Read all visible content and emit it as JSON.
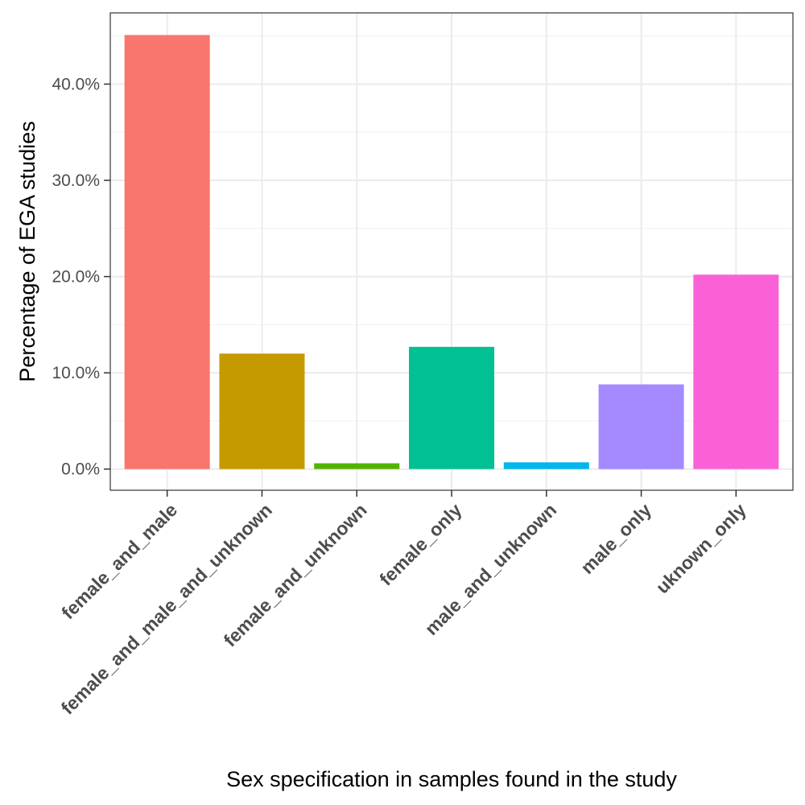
{
  "chart_data": {
    "type": "bar",
    "title": "",
    "xlabel": "Sex specification in samples found in the study",
    "ylabel": "Percentage of EGA studies",
    "categories": [
      "female_and_male",
      "female_and_male_and_unknown",
      "female_and_unknown",
      "female_only",
      "male_and_unknown",
      "male_only",
      "uknown_only"
    ],
    "values": [
      45.1,
      12.0,
      0.6,
      12.7,
      0.7,
      8.8,
      20.2
    ],
    "colors": [
      "#F8766D",
      "#C49A00",
      "#53B400",
      "#00C094",
      "#00B6EB",
      "#A58AFF",
      "#FB61D7"
    ],
    "ylim": [
      -2.2,
      47.4
    ],
    "yticks": [
      0,
      10,
      20,
      30,
      40
    ],
    "ytick_labels": [
      "0.0%",
      "10.0%",
      "20.0%",
      "30.0%",
      "40.0%"
    ],
    "grid": true,
    "legend": "none"
  }
}
